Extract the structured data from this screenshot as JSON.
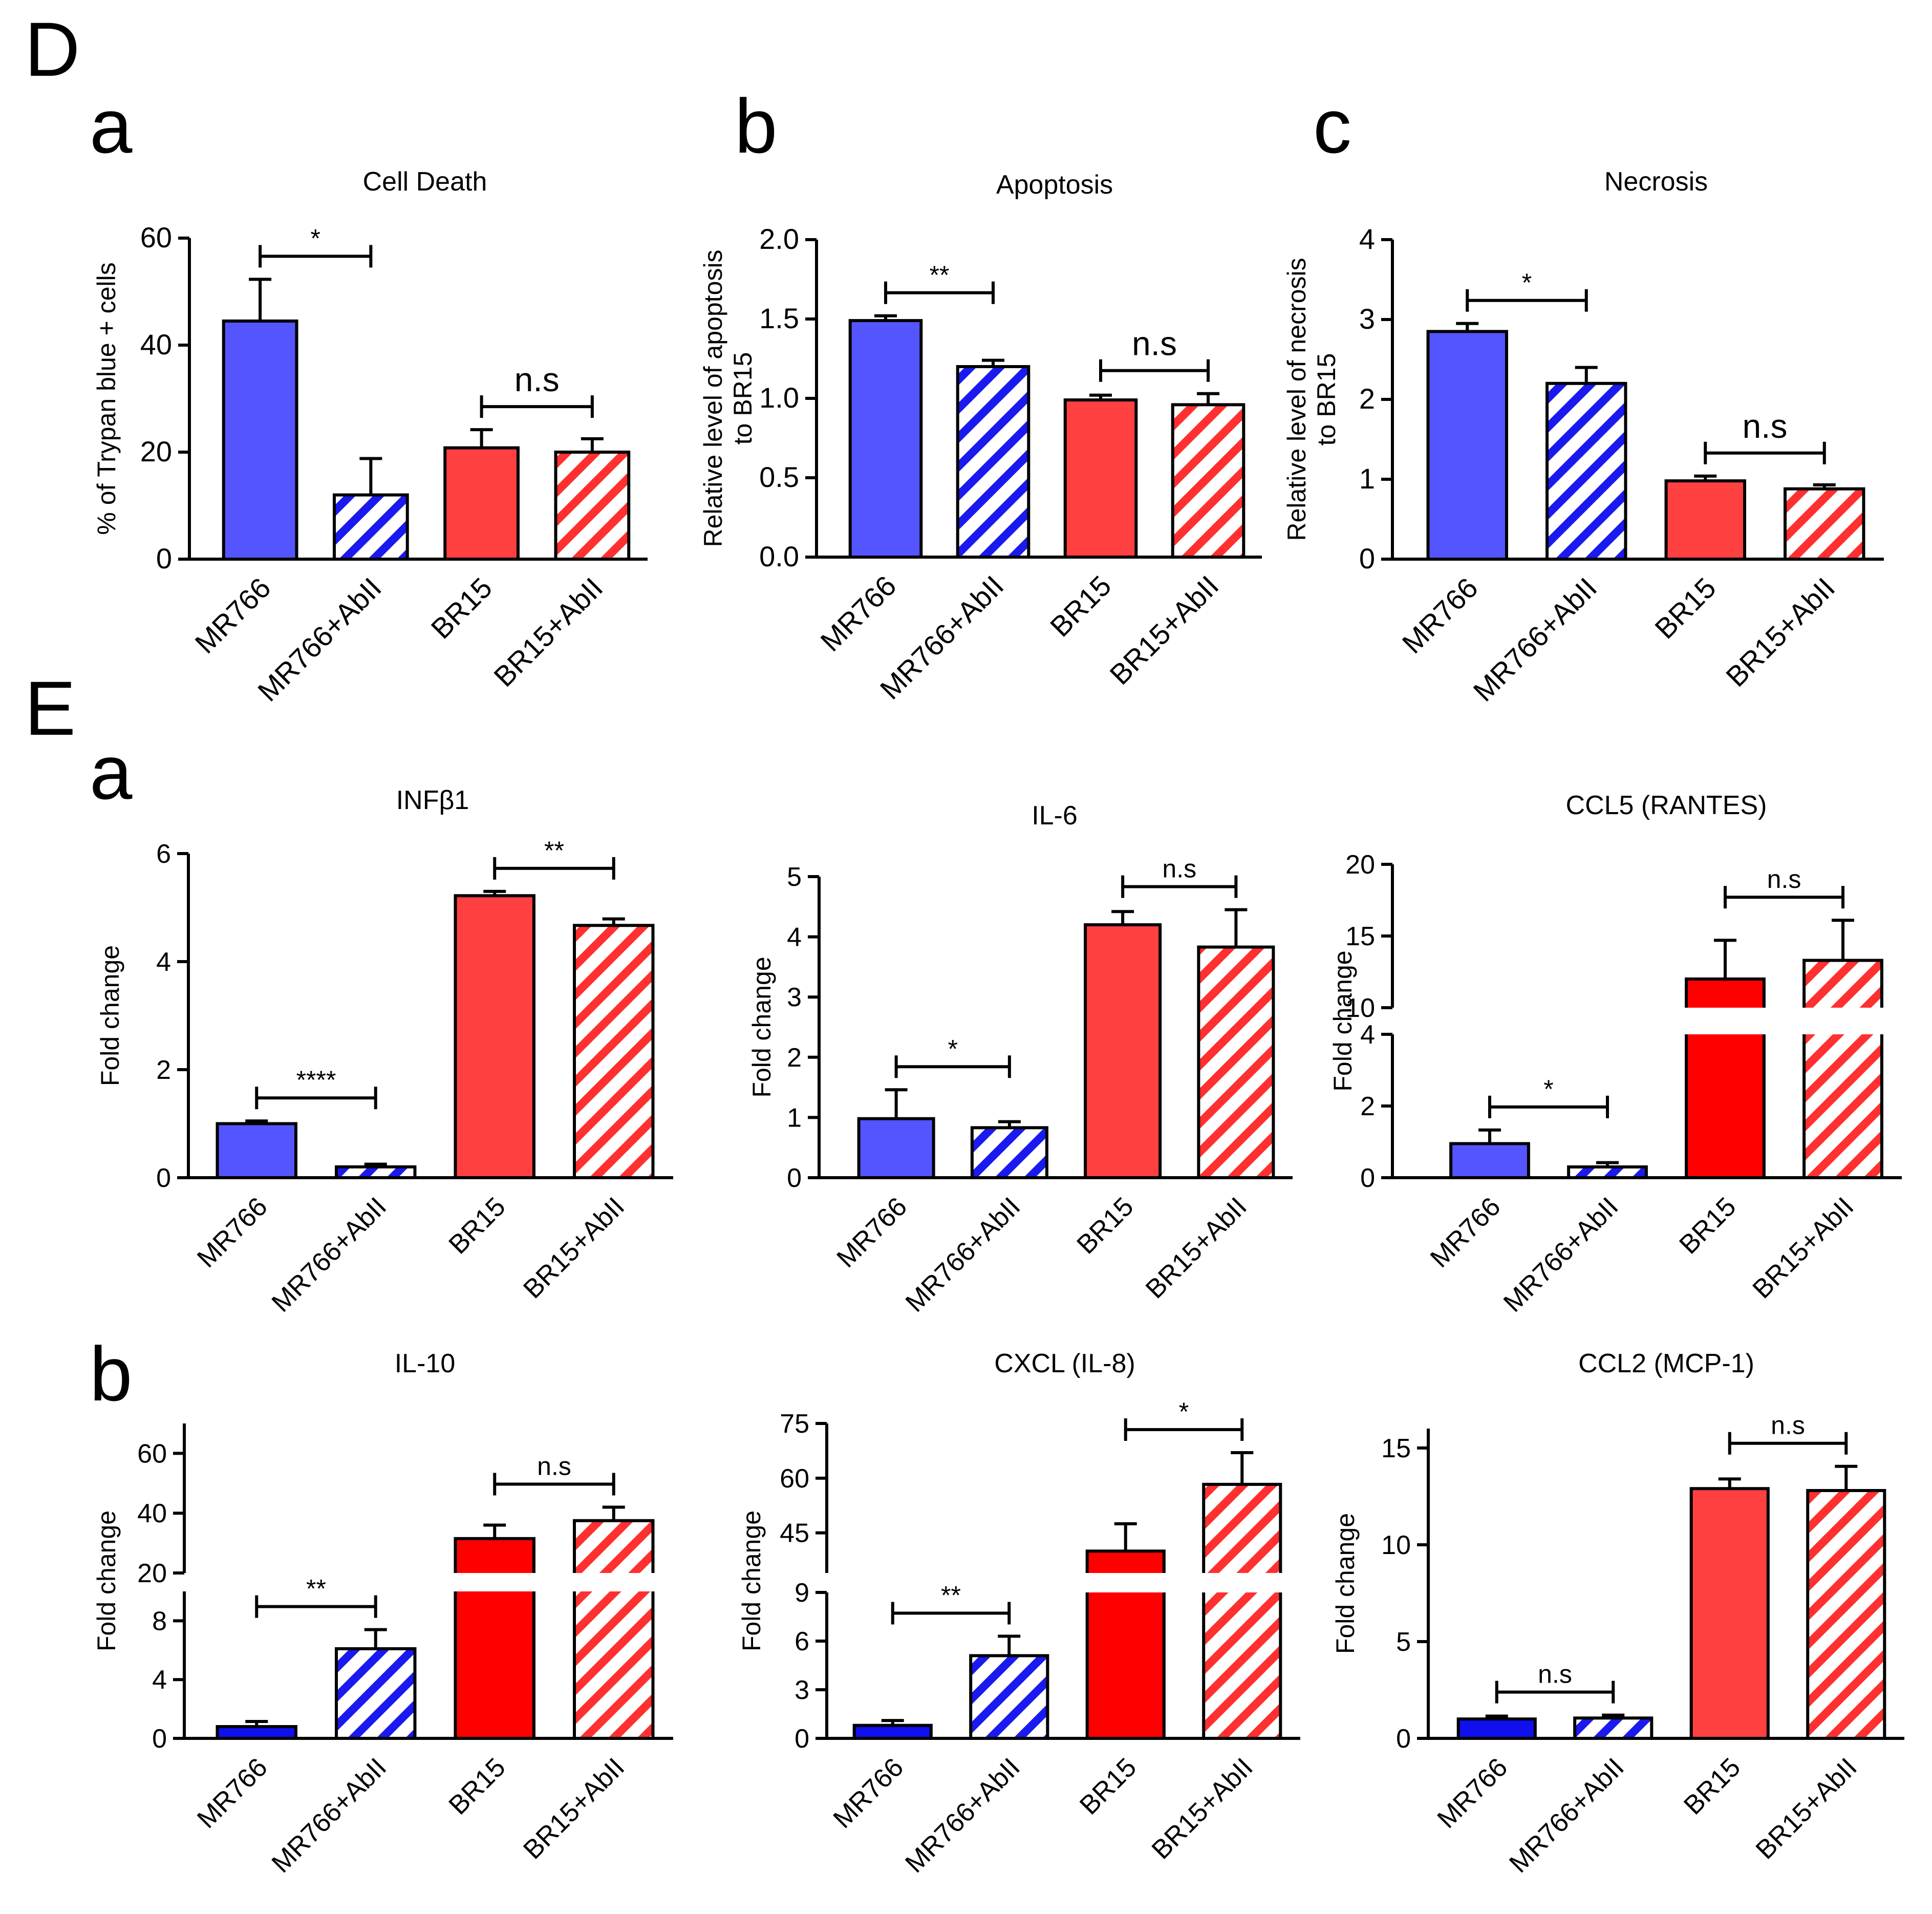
{
  "figure": {
    "panel_labels": {
      "D": "D",
      "Da": "a",
      "Db": "b",
      "Dc": "c",
      "E": "E",
      "Ea": "a",
      "Eb": "b"
    }
  },
  "colors": {
    "blue": "#5555ff",
    "blue_dark": "#1010ee",
    "red": "#ff4040",
    "red_pure": "#ff0000",
    "red_hatch": "#ff3030",
    "blue_hatch": "#1a1aee",
    "ink": "#000000"
  },
  "chart_data": [
    {
      "id": "Da",
      "type": "bar",
      "title": "Cell Death",
      "ylabel": [
        "% of Trypan blue + cells"
      ],
      "categories": [
        "MR766",
        "MR766+AbII",
        "BR15",
        "BR15+AbII"
      ],
      "values": [
        44.5,
        12,
        20.8,
        20
      ],
      "errors": [
        7.8,
        6.8,
        3.4,
        2.5
      ],
      "ylim": [
        0,
        60
      ],
      "yticks": [
        "0",
        "20",
        "40",
        "60"
      ],
      "sig": [
        {
          "from": 0,
          "to": 1,
          "label": "*"
        },
        {
          "from": 2,
          "to": 3,
          "label": "n.s"
        }
      ]
    },
    {
      "id": "Db",
      "type": "bar",
      "title": "Apoptosis",
      "ylabel": [
        "Relative level of apoptosis",
        "to BR15"
      ],
      "categories": [
        "MR766",
        "MR766+AbII",
        "BR15",
        "BR15+AbII"
      ],
      "values": [
        1.49,
        1.2,
        0.99,
        0.96
      ],
      "errors": [
        0.03,
        0.04,
        0.03,
        0.07
      ],
      "ylim": [
        0,
        2.0
      ],
      "yticks": [
        "0.0",
        "0.5",
        "1.0",
        "1.5",
        "2.0"
      ],
      "sig": [
        {
          "from": 0,
          "to": 1,
          "label": "**"
        },
        {
          "from": 2,
          "to": 3,
          "label": "n.s"
        }
      ]
    },
    {
      "id": "Dc",
      "type": "bar",
      "title": "Necrosis",
      "ylabel": [
        "Relative level of necrosis",
        "to BR15"
      ],
      "categories": [
        "MR766",
        "MR766+AbII",
        "BR15",
        "BR15+AbII"
      ],
      "values": [
        2.85,
        2.2,
        0.98,
        0.88
      ],
      "errors": [
        0.1,
        0.2,
        0.06,
        0.05
      ],
      "ylim": [
        0,
        4
      ],
      "yticks": [
        "0",
        "1",
        "2",
        "3",
        "4"
      ],
      "sig": [
        {
          "from": 0,
          "to": 1,
          "label": "*"
        },
        {
          "from": 2,
          "to": 3,
          "label": "n.s"
        }
      ]
    },
    {
      "id": "Ea1",
      "type": "bar",
      "title": "INFβ1",
      "ylabel": [
        "Fold change"
      ],
      "categories": [
        "MR766",
        "MR766+AbII",
        "BR15",
        "BR15+AbII"
      ],
      "values": [
        1.0,
        0.2,
        5.22,
        4.67
      ],
      "errors": [
        0.05,
        0.05,
        0.08,
        0.12
      ],
      "ylim": [
        0,
        6
      ],
      "yticks": [
        "0",
        "2",
        "4",
        "6"
      ],
      "sig": [
        {
          "from": 0,
          "to": 1,
          "label": "****"
        },
        {
          "from": 2,
          "to": 3,
          "label": "**"
        }
      ]
    },
    {
      "id": "Ea2",
      "type": "bar",
      "title": "IL-6",
      "ylabel": [
        "Fold change"
      ],
      "categories": [
        "MR766",
        "MR766+AbII",
        "BR15",
        "BR15+AbII"
      ],
      "values": [
        0.98,
        0.83,
        4.2,
        3.83
      ],
      "errors": [
        0.48,
        0.1,
        0.22,
        0.62
      ],
      "ylim": [
        0,
        5
      ],
      "yticks": [
        "0",
        "1",
        "2",
        "3",
        "4",
        "5"
      ],
      "sig": [
        {
          "from": 0,
          "to": 1,
          "label": "*"
        },
        {
          "from": 2,
          "to": 3,
          "label": "n.s"
        }
      ]
    },
    {
      "id": "Ea3",
      "type": "bar",
      "title": "CCL5 (RANTES)",
      "ylabel": [
        "Fold change"
      ],
      "categories": [
        "MR766",
        "MR766+AbII",
        "BR15",
        "BR15+AbII"
      ],
      "values": [
        0.95,
        0.3,
        12,
        13.3
      ],
      "errors": [
        0.38,
        0.12,
        2.7,
        2.8
      ],
      "ylim": [
        0,
        20
      ],
      "axis_break": [
        4,
        10
      ],
      "yticks": [
        "0",
        "2",
        "4",
        "10",
        "15",
        "20"
      ],
      "sig": [
        {
          "from": 0,
          "to": 1,
          "label": "*"
        },
        {
          "from": 2,
          "to": 3,
          "label": "n.s"
        }
      ]
    },
    {
      "id": "Eb1",
      "type": "bar",
      "title": "IL-10",
      "ylabel": [
        "Fold change"
      ],
      "categories": [
        "MR766",
        "MR766+AbII",
        "BR15",
        "BR15+AbII"
      ],
      "values": [
        0.8,
        6.1,
        31.5,
        37.5
      ],
      "errors": [
        0.35,
        1.3,
        4.5,
        4.5
      ],
      "ylim": [
        0,
        70
      ],
      "axis_break": [
        10,
        20
      ],
      "yticks": [
        "0",
        "4",
        "8",
        "20",
        "40",
        "60"
      ],
      "sig": [
        {
          "from": 0,
          "to": 1,
          "label": "**"
        },
        {
          "from": 2,
          "to": 3,
          "label": "n.s"
        }
      ]
    },
    {
      "id": "Eb2",
      "type": "bar",
      "title": "CXCL (IL-8)",
      "ylabel": [
        "Fold change"
      ],
      "categories": [
        "MR766",
        "MR766+AbII",
        "BR15",
        "BR15+AbII"
      ],
      "values": [
        0.8,
        5.1,
        40,
        58.3
      ],
      "errors": [
        0.3,
        1.2,
        7.5,
        8.7
      ],
      "ylim": [
        0,
        75
      ],
      "axis_break": [
        9,
        34
      ],
      "yticks": [
        "0",
        "3",
        "6",
        "9",
        "45",
        "60",
        "75"
      ],
      "sig": [
        {
          "from": 0,
          "to": 1,
          "label": "**"
        },
        {
          "from": 2,
          "to": 3,
          "label": "*"
        }
      ]
    },
    {
      "id": "Eb3",
      "type": "bar",
      "title": "CCL2 (MCP-1)",
      "ylabel": [
        "Fold change"
      ],
      "categories": [
        "MR766",
        "MR766+AbII",
        "BR15",
        "BR15+AbII"
      ],
      "values": [
        1.0,
        1.05,
        12.9,
        12.8
      ],
      "errors": [
        0.15,
        0.15,
        0.5,
        1.25
      ],
      "ylim": [
        0,
        16
      ],
      "yticks": [
        "0",
        "5",
        "10",
        "15"
      ],
      "sig": [
        {
          "from": 0,
          "to": 1,
          "label": "n.s"
        },
        {
          "from": 2,
          "to": 3,
          "label": "n.s"
        }
      ]
    }
  ]
}
